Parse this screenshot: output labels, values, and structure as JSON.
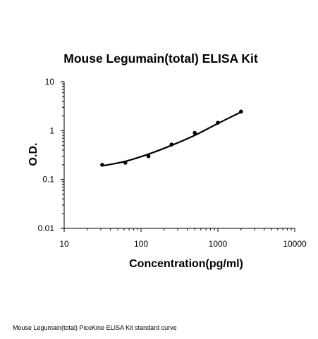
{
  "chart_data": {
    "type": "scatter",
    "title": "Mouse Legumain(total) ELISA Kit",
    "xlabel": "Concentration(pg/ml)",
    "ylabel": "O.D.",
    "x_scale": "log",
    "y_scale": "log",
    "xlim": [
      10,
      10000
    ],
    "ylim": [
      0.01,
      10
    ],
    "x_ticks": [
      "10",
      "100",
      "1000",
      "10000"
    ],
    "y_ticks": [
      "0.01",
      "0.1",
      "1",
      "10"
    ],
    "grid": false,
    "legend": "none",
    "series": [
      {
        "style": "points",
        "x": [
          31.25,
          62.5,
          125,
          250,
          500,
          1000,
          2000
        ],
        "y": [
          0.2,
          0.22,
          0.3,
          0.52,
          0.9,
          1.45,
          2.45
        ]
      },
      {
        "style": "fitted-curve",
        "x": [
          31.25,
          62.5,
          125,
          250,
          500,
          1000,
          2000
        ],
        "y": [
          0.19,
          0.235,
          0.33,
          0.5,
          0.8,
          1.4,
          2.4
        ]
      }
    ]
  },
  "caption": "Mouse Legumain(total) PicoKine ELISA Kit standard curve",
  "colors": {
    "line": "#000000",
    "points": "#000000",
    "axes": "#000000",
    "background": "#ffffff"
  }
}
